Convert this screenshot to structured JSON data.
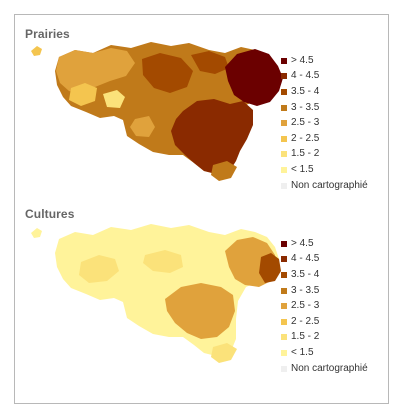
{
  "panels": [
    {
      "title": "Prairies",
      "legend": [
        {
          "label": "> 4.5",
          "color": "#6b0000"
        },
        {
          "label": "4 - 4.5",
          "color": "#8a2a00"
        },
        {
          "label": "3.5 - 4",
          "color": "#a34a00"
        },
        {
          "label": "3 - 3.5",
          "color": "#c07a1a"
        },
        {
          "label": "2.5 - 3",
          "color": "#e0a23c"
        },
        {
          "label": "2 - 2.5",
          "color": "#f4c54f"
        },
        {
          "label": "1.5 - 2",
          "color": "#fbe27a"
        },
        {
          "label": "< 1.5",
          "color": "#fff39a"
        },
        {
          "label": "Non cartographié",
          "color": "#efefef"
        }
      ]
    },
    {
      "title": "Cultures",
      "legend": [
        {
          "label": "> 4.5",
          "color": "#6b0000"
        },
        {
          "label": "4 - 4.5",
          "color": "#8a2a00"
        },
        {
          "label": "3.5 - 4",
          "color": "#a34a00"
        },
        {
          "label": "3 - 3.5",
          "color": "#c07a1a"
        },
        {
          "label": "2.5 - 3",
          "color": "#e0a23c"
        },
        {
          "label": "2 - 2.5",
          "color": "#f4c54f"
        },
        {
          "label": "1.5 - 2",
          "color": "#fbe27a"
        },
        {
          "label": "< 1.5",
          "color": "#fff39a"
        },
        {
          "label": "Non cartographié",
          "color": "#efefef"
        }
      ]
    }
  ]
}
